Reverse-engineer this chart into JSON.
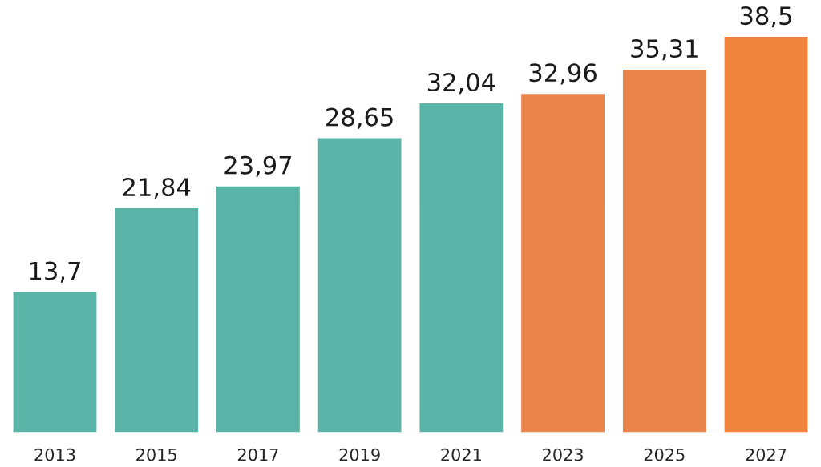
{
  "chart_data": {
    "type": "bar",
    "categories": [
      "2013",
      "2015",
      "2017",
      "2019",
      "2021",
      "2023",
      "2025",
      "2027"
    ],
    "values": [
      13.7,
      21.84,
      23.97,
      28.65,
      32.04,
      32.96,
      35.31,
      38.5
    ],
    "colors": [
      "#5ab4a7",
      "#5ab4a7",
      "#5ab4a7",
      "#5ab4a7",
      "#5ab4a7",
      "#e9844a",
      "#e9844a",
      "#f0843c"
    ],
    "value_labels": [
      "13,7",
      "21,84",
      "23,97",
      "28,65",
      "32,04",
      "32,96",
      "35,31",
      "38,5"
    ],
    "grid": false,
    "legend": false
  }
}
